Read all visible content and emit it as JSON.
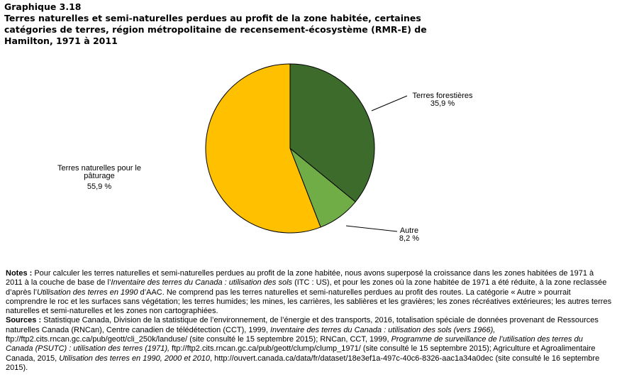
{
  "chart_data": {
    "type": "pie",
    "label": "Graphique 3.18",
    "title": [
      "Terres naturelles et semi-naturelles perdues au profit de la zone habitée, certaines",
      "catégories de terres, région métropolitaine de recensement-écosystème (RMR-E) de",
      "Hamilton, 1971 à 2011"
    ],
    "categories": [
      "Terres forestières",
      "Autre",
      "Terres naturelles pour le pâturage"
    ],
    "values": [
      35.9,
      8.2,
      55.9
    ],
    "value_labels": [
      "35,9 %",
      "8,2 %",
      "55,9 %"
    ],
    "colors": [
      "#3d6b2b",
      "#70ad47",
      "#ffc000"
    ],
    "notes": {
      "label": "Notes :",
      "runs": [
        {
          "text": " Pour calculer les terres naturelles et semi-naturelles perdues au profit de la zone habitée, nous avons superposé la croissance dans les zones habitées de 1971 à 2011 à la couche de base de l’"
        },
        {
          "text": "Inventaire des terres du Canada : utilisation des sols",
          "italic": true
        },
        {
          "text": " (ITC : US), et  pour les zones où la zone habitée de 1971 a été réduite, à la zone reclassée d’après l’"
        },
        {
          "text": "Utilisation des terres en 1990",
          "italic": true
        },
        {
          "text": " d’AAC. Ne comprend pas les terres naturelles et semi-naturelles perdues au profit des routes. La catégorie « Autre » pourrait comprendre le roc et les surfaces sans végétation; les terres humides; les mines, les carrières, les sablières et les gravières; les zones récréatives extérieures; les autres terres naturelles et semi-naturelles et les zones non cartographiées."
        }
      ]
    },
    "sources": {
      "label": "Sources :",
      "runs": [
        {
          "text": " Statistique Canada, Division de la statistique de l’environnement, de l’énergie et des transports, 2016, totalisation spéciale de données provenant de Ressources naturelles Canada (RNCan), Centre canadien de télédétection (CCT), 1999, "
        },
        {
          "text": "Inventaire des terres du Canada : utilisation des sols (vers 1966),",
          "italic": true
        },
        {
          "text": " ftp://ftp2.cits.rncan.gc.ca/pub/geott/cli_250k/landuse/ (site consulté le 15 septembre 2015); RNCan, CCT, 1999, "
        },
        {
          "text": "Programme de surveillance de l’utilisation des terres du Canada (PSUTC) : utilisation des terres (1971),",
          "italic": true
        },
        {
          "text": " ftp://ftp2.cits.rncan.gc.ca/pub/geott/clump/clump_1971/ (site consulté le 15 septembre 2015); Agriculture et Agroalimentaire Canada, 2015, "
        },
        {
          "text": "Utilisation des terres en 1990, 2000 et 2010",
          "italic": true
        },
        {
          "text": ", http://ouvert.canada.ca/data/fr/dataset/18e3ef1a-497c-40c6-8326-aac1a34a0dec (site consulté le 16 septembre 2015)."
        }
      ]
    }
  }
}
